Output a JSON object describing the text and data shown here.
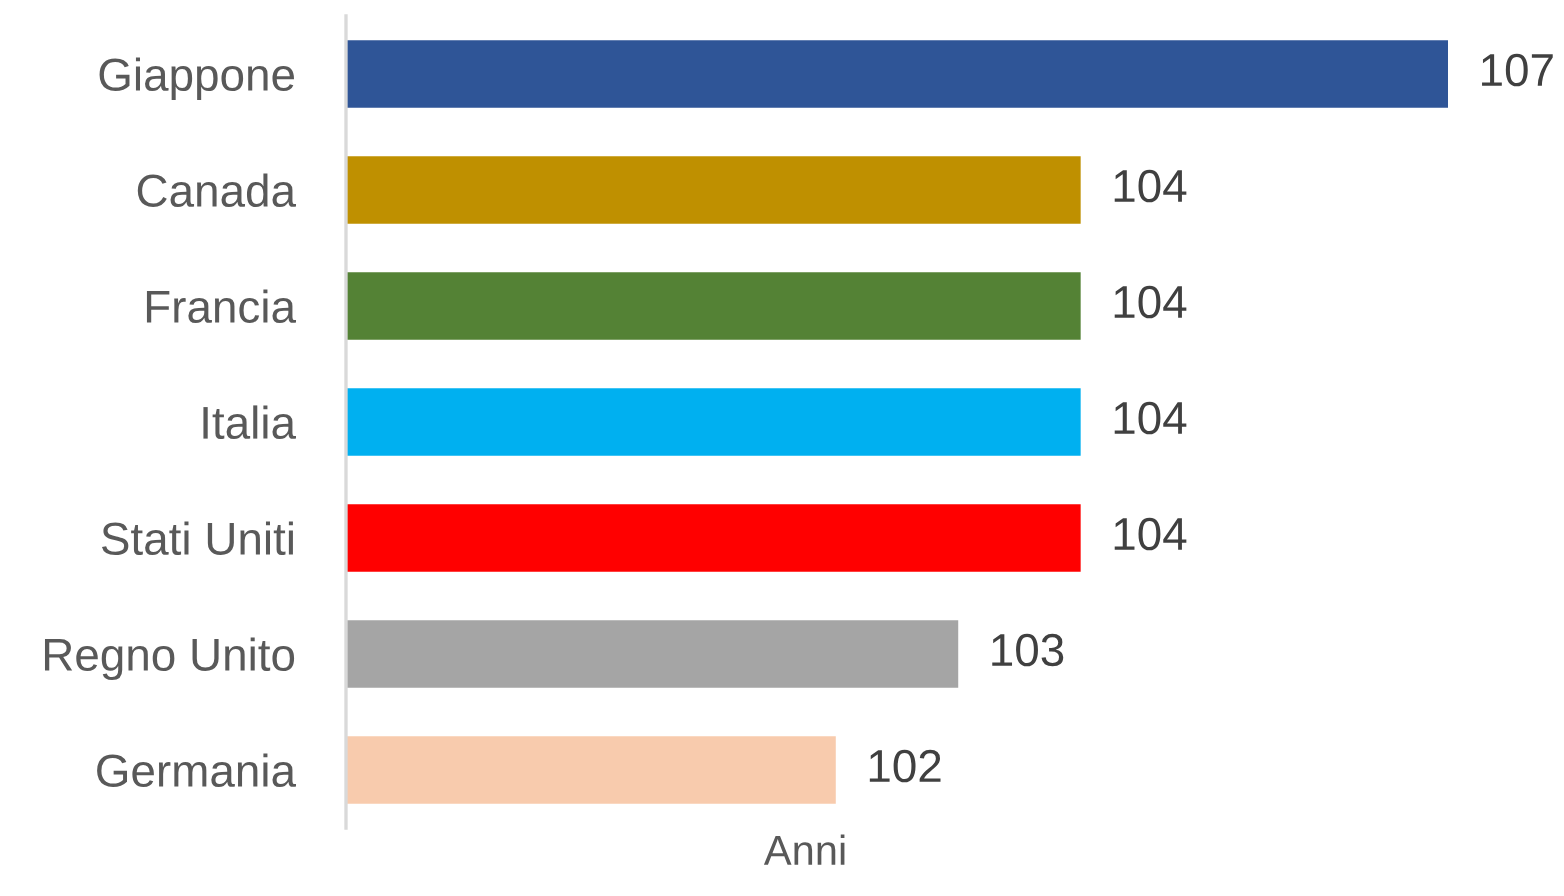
{
  "chart_data": {
    "type": "bar",
    "orientation": "horizontal",
    "xlabel": "Anni",
    "categories": [
      "Giappone",
      "Canada",
      "Francia",
      "Italia",
      "Stati Uniti",
      "Regno Unito",
      "Germania"
    ],
    "values": [
      107,
      104,
      104,
      104,
      104,
      103,
      102
    ],
    "colors": [
      "#2f5597",
      "#bf9000",
      "#548235",
      "#00b0f0",
      "#ff0000",
      "#a5a5a5",
      "#f8cbad"
    ],
    "xlim": [
      98,
      107
    ],
    "data_labels": true,
    "tick_labels": "y"
  }
}
